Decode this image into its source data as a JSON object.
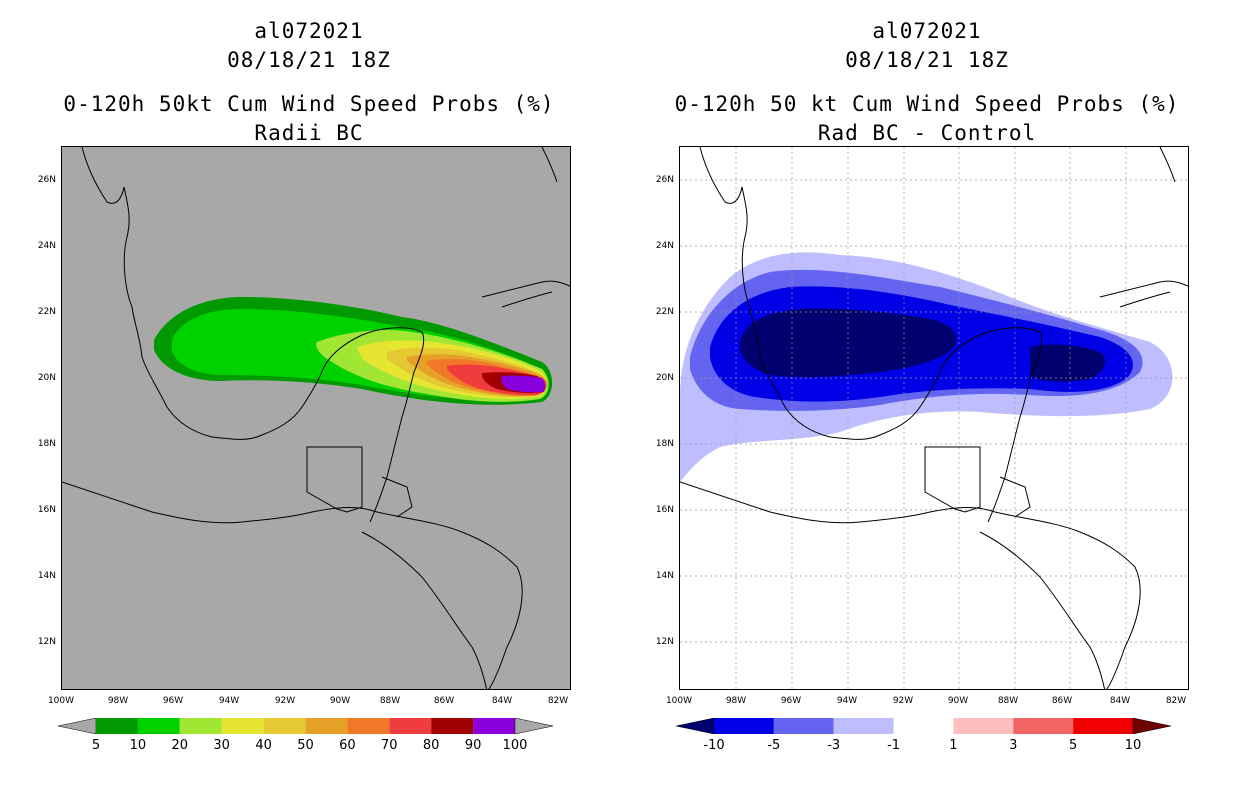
{
  "left": {
    "storm_id": "al072021",
    "datetime": "08/18/21 18Z",
    "title": "0-120h 50kt Cum Wind Speed Probs (%)",
    "subtitle": "Radii BC",
    "colorbar": {
      "labels": [
        "5",
        "10",
        "20",
        "30",
        "40",
        "50",
        "60",
        "70",
        "80",
        "90",
        "100"
      ],
      "colors": [
        "#009a00",
        "#00d200",
        "#a0e632",
        "#e6e632",
        "#e6c832",
        "#e6a028",
        "#f07828",
        "#f03c3c",
        "#a00000",
        "#8a00dc"
      ],
      "under_color": "#a8a8a8",
      "over_color": "#a8a8a8"
    },
    "background_color": "#a8a8a8"
  },
  "right": {
    "storm_id": "al072021",
    "datetime": "08/18/21 18Z",
    "title": "0-120h 50 kt Cum Wind Speed Probs (%)",
    "subtitle": "Rad BC - Control",
    "colorbar": {
      "labels": [
        "-10",
        "-5",
        "-3",
        "-1",
        "1",
        "3",
        "5",
        "10"
      ],
      "colors": [
        "#0000e6",
        "#6464f0",
        "#bebeff",
        "#ffffff",
        "#ffbebe",
        "#f06464",
        "#f00000"
      ],
      "under_color": "#00006e",
      "over_color": "#6e0000"
    },
    "background_color": "#ffffff"
  },
  "lat_labels": [
    "26N",
    "24N",
    "22N",
    "20N",
    "18N",
    "16N",
    "14N",
    "12N"
  ],
  "lon_labels": [
    "100W",
    "98W",
    "96W",
    "94W",
    "92W",
    "90W",
    "88W",
    "86W",
    "84W",
    "82W"
  ]
}
